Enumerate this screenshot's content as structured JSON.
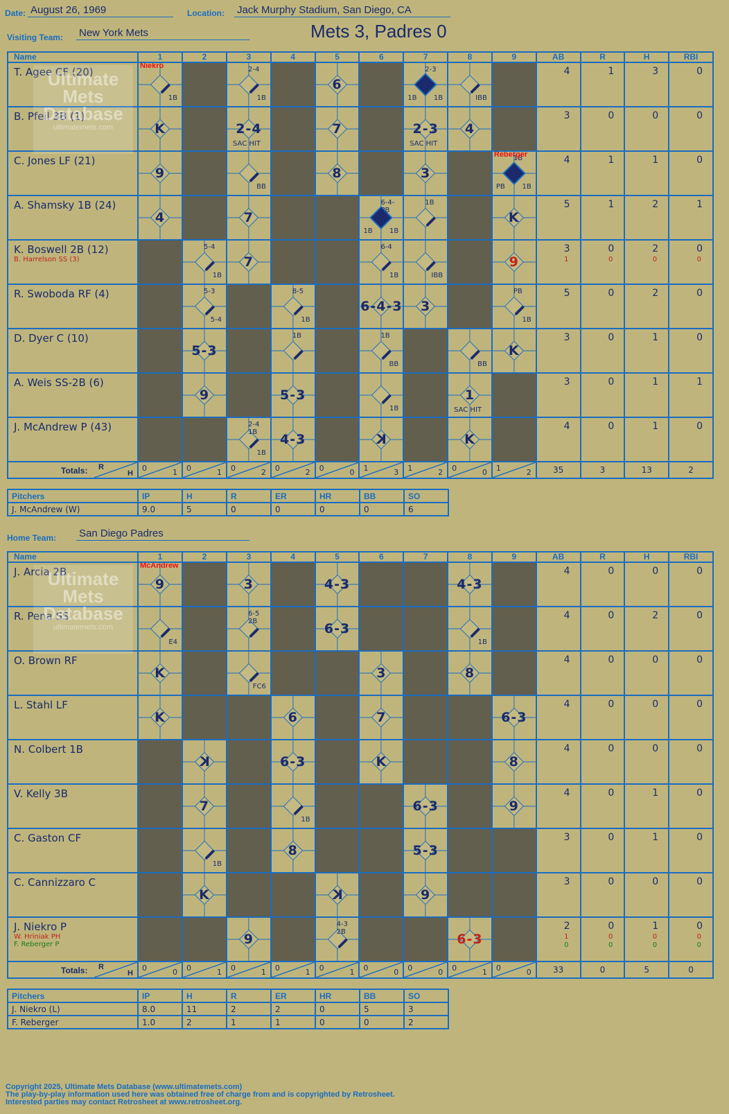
{
  "header": {
    "date_label": "Date:",
    "date": "August 26, 1969",
    "location_label": "Location:",
    "location": "Jack Murphy Stadium, San Diego, CA",
    "visiting_label": "Visiting Team:",
    "visiting_team": "New York Mets",
    "title": "Mets 3, Padres 0",
    "home_label": "Home Team:",
    "home_team": "San Diego Padres"
  },
  "columns": {
    "name": "Name",
    "innings": [
      "1",
      "2",
      "3",
      "4",
      "5",
      "6",
      "7",
      "8",
      "9"
    ],
    "ab": "AB",
    "r": "R",
    "h": "H",
    "rbi": "RBI"
  },
  "watermark": {
    "line1": "Ultimate",
    "line2": "Mets",
    "line3": "Database",
    "site": "ultimatemets.com"
  },
  "visitors": [
    {
      "name": "T. Agee CF (20)",
      "ab": "4",
      "r": "1",
      "h": "3",
      "rbi": "0"
    },
    {
      "name": "B. Pfeil 3B (1)",
      "ab": "3",
      "r": "0",
      "h": "0",
      "rbi": "0"
    },
    {
      "name": "C. Jones LF (21)",
      "ab": "4",
      "r": "1",
      "h": "1",
      "rbi": "0"
    },
    {
      "name": "A. Shamsky 1B (24)",
      "ab": "5",
      "r": "1",
      "h": "2",
      "rbi": "1"
    },
    {
      "name": "K. Boswell 2B (12)",
      "sub": "B. Harrelson SS (3)",
      "ab": "3",
      "r": "0",
      "h": "2",
      "rbi": "0",
      "sub_ab": "1",
      "sub_r": "0",
      "sub_h": "0",
      "sub_rbi": "0"
    },
    {
      "name": "R. Swoboda RF (4)",
      "ab": "5",
      "r": "0",
      "h": "2",
      "rbi": "0"
    },
    {
      "name": "D. Dyer C (10)",
      "ab": "3",
      "r": "0",
      "h": "1",
      "rbi": "0"
    },
    {
      "name": "A. Weis SS-2B (6)",
      "ab": "3",
      "r": "0",
      "h": "1",
      "rbi": "1"
    },
    {
      "name": "J. McAndrew P (43)",
      "ab": "4",
      "r": "0",
      "h": "1",
      "rbi": "0"
    }
  ],
  "visitor_totals": {
    "label": "Totals:",
    "r": "R",
    "h": "H",
    "innings": [
      [
        "0",
        "1"
      ],
      [
        "0",
        "1"
      ],
      [
        "0",
        "2"
      ],
      [
        "0",
        "2"
      ],
      [
        "0",
        "0"
      ],
      [
        "1",
        "3"
      ],
      [
        "1",
        "2"
      ],
      [
        "0",
        "0"
      ],
      [
        "1",
        "2"
      ]
    ],
    "ab": "35",
    "runs": "3",
    "hits": "13",
    "rbi": "2"
  },
  "visitor_pitchers": {
    "headers": [
      "Pitchers",
      "IP",
      "H",
      "R",
      "ER",
      "HR",
      "BB",
      "SO"
    ],
    "rows": [
      [
        "J. McAndrew (W)",
        "9.0",
        "5",
        "0",
        "0",
        "0",
        "0",
        "6"
      ]
    ]
  },
  "home": [
    {
      "name": "J. Arcia 2B",
      "ab": "4",
      "r": "0",
      "h": "0",
      "rbi": "0"
    },
    {
      "name": "R. Pena SS",
      "ab": "4",
      "r": "0",
      "h": "2",
      "rbi": "0"
    },
    {
      "name": "O. Brown RF",
      "ab": "4",
      "r": "0",
      "h": "0",
      "rbi": "0"
    },
    {
      "name": "L. Stahl LF",
      "ab": "4",
      "r": "0",
      "h": "0",
      "rbi": "0"
    },
    {
      "name": "N. Colbert 1B",
      "ab": "4",
      "r": "0",
      "h": "0",
      "rbi": "0"
    },
    {
      "name": "V. Kelly 3B",
      "ab": "4",
      "r": "0",
      "h": "1",
      "rbi": "0"
    },
    {
      "name": "C. Gaston CF",
      "ab": "3",
      "r": "0",
      "h": "1",
      "rbi": "0"
    },
    {
      "name": "C. Cannizzaro C",
      "ab": "3",
      "r": "0",
      "h": "0",
      "rbi": "0"
    },
    {
      "name": "J. Niekro P",
      "sub": "W. Hriniak PH",
      "sub2": "F. Reberger P",
      "ab": "2",
      "r": "0",
      "h": "1",
      "rbi": "0",
      "sub_ab": "1",
      "sub_r": "0",
      "sub_h": "0",
      "sub_rbi": "0",
      "sub2_ab": "0",
      "sub2_r": "0",
      "sub2_h": "0",
      "sub2_rbi": "0"
    }
  ],
  "home_totals": {
    "label": "Totals:",
    "r": "R",
    "h": "H",
    "innings": [
      [
        "0",
        "0"
      ],
      [
        "0",
        "1"
      ],
      [
        "0",
        "1"
      ],
      [
        "0",
        "1"
      ],
      [
        "0",
        "1"
      ],
      [
        "0",
        "0"
      ],
      [
        "0",
        "0"
      ],
      [
        "0",
        "1"
      ],
      [
        "0",
        "0"
      ]
    ],
    "ab": "33",
    "runs": "0",
    "hits": "5",
    "rbi": "0"
  },
  "home_pitchers": {
    "headers": [
      "Pitchers",
      "IP",
      "H",
      "R",
      "ER",
      "HR",
      "BB",
      "SO"
    ],
    "rows": [
      [
        "J. Niekro (L)",
        "8.0",
        "11",
        "2",
        "2",
        "0",
        "5",
        "3"
      ],
      [
        "F. Reberger",
        "1.0",
        "2",
        "1",
        "1",
        "0",
        "0",
        "2"
      ]
    ]
  },
  "footer": {
    "line1": "Copyright 2025, Ultimate Mets Database (www.ultimatemets.com)",
    "line2": "The play-by-play information used here was obtained free of charge from and is copyrighted by Retrosheet.",
    "line3": "Interested parties may contact Retrosheet at www.retrosheet.org."
  },
  "visitor_grid": [
    [
      {
        "t": "hit",
        "lbl": "1B",
        "note": "Niekro"
      },
      {
        "shade": true
      },
      {
        "t": "hit",
        "lbl": "1B",
        "top": "2-4"
      },
      {
        "shade": true
      },
      {
        "t": "text",
        "v": "6"
      },
      {
        "shade": true
      },
      {
        "t": "run",
        "lbl": "1B",
        "lbl2": "1B",
        "top": "2-3"
      },
      {
        "t": "hit",
        "lbl": "IBB"
      },
      {
        "shade": true
      }
    ],
    [
      {
        "t": "text",
        "v": "K"
      },
      {
        "shade": true
      },
      {
        "t": "text",
        "v": "2-4",
        "sub": "SAC HIT"
      },
      {
        "shade": true
      },
      {
        "t": "text",
        "v": "7"
      },
      {
        "shade": true
      },
      {
        "t": "text",
        "v": "2-3",
        "sub": "SAC HIT"
      },
      {
        "t": "text",
        "v": "4"
      },
      {
        "shade": true
      }
    ],
    [
      {
        "t": "text",
        "v": "9"
      },
      {
        "shade": true
      },
      {
        "t": "hit",
        "lbl": "BB"
      },
      {
        "shade": true
      },
      {
        "t": "text",
        "v": "8"
      },
      {
        "shade": true
      },
      {
        "t": "text",
        "v": "3"
      },
      {
        "shade": true
      },
      {
        "t": "run",
        "lbl": "1B",
        "lbl2": "PB",
        "top": "1B",
        "note": "Reberger"
      }
    ],
    [
      {
        "t": "text",
        "v": "4"
      },
      {
        "shade": true
      },
      {
        "t": "text",
        "v": "7"
      },
      {
        "shade": true
      },
      {
        "shade": true
      },
      {
        "t": "run",
        "lbl": "1B",
        "lbl2": "1B",
        "top": "6-4-PB"
      },
      {
        "t": "hit",
        "lbl": "",
        "top": "1B"
      },
      {
        "shade": true
      },
      {
        "t": "text",
        "v": "K"
      }
    ],
    [
      {
        "shade": true
      },
      {
        "t": "hit",
        "lbl": "1B",
        "top": "5-4"
      },
      {
        "t": "text",
        "v": "7"
      },
      {
        "shade": true
      },
      {
        "shade": true
      },
      {
        "t": "hit",
        "lbl": "1B",
        "top": "6-4"
      },
      {
        "t": "hit",
        "lbl": "IBB"
      },
      {
        "shade": true
      },
      {
        "t": "text",
        "v": "9",
        "red": true
      }
    ],
    [
      {
        "shade": true
      },
      {
        "t": "hit",
        "lbl": "5-4",
        "top": "5-3"
      },
      {
        "shade": true
      },
      {
        "t": "hit",
        "lbl": "1B",
        "top": "8-5"
      },
      {
        "shade": true
      },
      {
        "t": "text",
        "v": "6-4-3"
      },
      {
        "t": "text",
        "v": "3"
      },
      {
        "shade": true
      },
      {
        "t": "hit",
        "lbl": "1B",
        "top": "PB"
      }
    ],
    [
      {
        "shade": true
      },
      {
        "t": "text",
        "v": "5-3"
      },
      {
        "shade": true
      },
      {
        "t": "hit",
        "lbl": "",
        "top": "1B"
      },
      {
        "shade": true
      },
      {
        "t": "hit",
        "lbl": "BB",
        "top": "1B"
      },
      {
        "shade": true
      },
      {
        "t": "hit",
        "lbl": "BB"
      },
      {
        "t": "text",
        "v": "K"
      }
    ],
    [
      {
        "shade": true
      },
      {
        "t": "text",
        "v": "9"
      },
      {
        "shade": true
      },
      {
        "t": "text",
        "v": "5-3"
      },
      {
        "shade": true
      },
      {
        "t": "hit",
        "lbl": "1B"
      },
      {
        "shade": true
      },
      {
        "t": "text",
        "v": "1",
        "sub": "SAC HIT"
      },
      {
        "shade": true
      }
    ],
    [
      {
        "shade": true
      },
      {
        "shade": true
      },
      {
        "t": "hit",
        "lbl": "1B",
        "top": "2-4 1B"
      },
      {
        "t": "text",
        "v": "4-3"
      },
      {
        "shade": true
      },
      {
        "t": "text",
        "v": "K",
        "back": true
      },
      {
        "shade": true
      },
      {
        "t": "text",
        "v": "K"
      },
      {
        "shade": true
      }
    ]
  ],
  "home_grid": [
    [
      {
        "t": "text",
        "v": "9",
        "note": "McAndrew"
      },
      {
        "shade": true
      },
      {
        "t": "text",
        "v": "3"
      },
      {
        "shade": true
      },
      {
        "t": "text",
        "v": "4-3"
      },
      {
        "shade": true
      },
      {
        "shade": true
      },
      {
        "t": "text",
        "v": "4-3"
      },
      {
        "shade": true
      }
    ],
    [
      {
        "t": "hit",
        "lbl": "E4"
      },
      {
        "shade": true
      },
      {
        "t": "hit",
        "lbl": "",
        "top": "6-5 2B"
      },
      {
        "shade": true
      },
      {
        "t": "text",
        "v": "6-3"
      },
      {
        "shade": true
      },
      {
        "shade": true
      },
      {
        "t": "hit",
        "lbl": "1B"
      },
      {
        "shade": true
      }
    ],
    [
      {
        "t": "text",
        "v": "K"
      },
      {
        "shade": true
      },
      {
        "t": "hit",
        "lbl": "FC6"
      },
      {
        "shade": true
      },
      {
        "shade": true
      },
      {
        "t": "text",
        "v": "3"
      },
      {
        "shade": true
      },
      {
        "t": "text",
        "v": "8"
      },
      {
        "shade": true
      }
    ],
    [
      {
        "t": "text",
        "v": "K"
      },
      {
        "shade": true
      },
      {
        "shade": true
      },
      {
        "t": "text",
        "v": "6"
      },
      {
        "shade": true
      },
      {
        "t": "text",
        "v": "7"
      },
      {
        "shade": true
      },
      {
        "shade": true
      },
      {
        "t": "text",
        "v": "6-3"
      }
    ],
    [
      {
        "shade": true
      },
      {
        "t": "text",
        "v": "K",
        "back": true
      },
      {
        "shade": true
      },
      {
        "t": "text",
        "v": "6-3"
      },
      {
        "shade": true
      },
      {
        "t": "text",
        "v": "K"
      },
      {
        "shade": true
      },
      {
        "shade": true
      },
      {
        "t": "text",
        "v": "8"
      }
    ],
    [
      {
        "shade": true
      },
      {
        "t": "text",
        "v": "7"
      },
      {
        "shade": true
      },
      {
        "t": "hit",
        "lbl": "1B"
      },
      {
        "shade": true
      },
      {
        "shade": true
      },
      {
        "t": "text",
        "v": "6-3"
      },
      {
        "shade": true
      },
      {
        "t": "text",
        "v": "9"
      }
    ],
    [
      {
        "shade": true
      },
      {
        "t": "hit",
        "lbl": "1B"
      },
      {
        "shade": true
      },
      {
        "t": "text",
        "v": "8"
      },
      {
        "shade": true
      },
      {
        "shade": true
      },
      {
        "t": "text",
        "v": "5-3"
      },
      {
        "shade": true
      },
      {
        "shade": true
      }
    ],
    [
      {
        "shade": true
      },
      {
        "t": "text",
        "v": "K"
      },
      {
        "shade": true
      },
      {
        "shade": true
      },
      {
        "t": "text",
        "v": "K",
        "back": true
      },
      {
        "shade": true
      },
      {
        "t": "text",
        "v": "9"
      },
      {
        "shade": true
      },
      {
        "shade": true
      }
    ],
    [
      {
        "shade": true
      },
      {
        "shade": true
      },
      {
        "t": "text",
        "v": "9"
      },
      {
        "shade": true
      },
      {
        "t": "hit",
        "lbl": "",
        "top": "4-3 2B"
      },
      {
        "shade": true
      },
      {
        "shade": true
      },
      {
        "t": "text",
        "v": "6-3",
        "red": true
      },
      {
        "shade": true
      }
    ]
  ]
}
